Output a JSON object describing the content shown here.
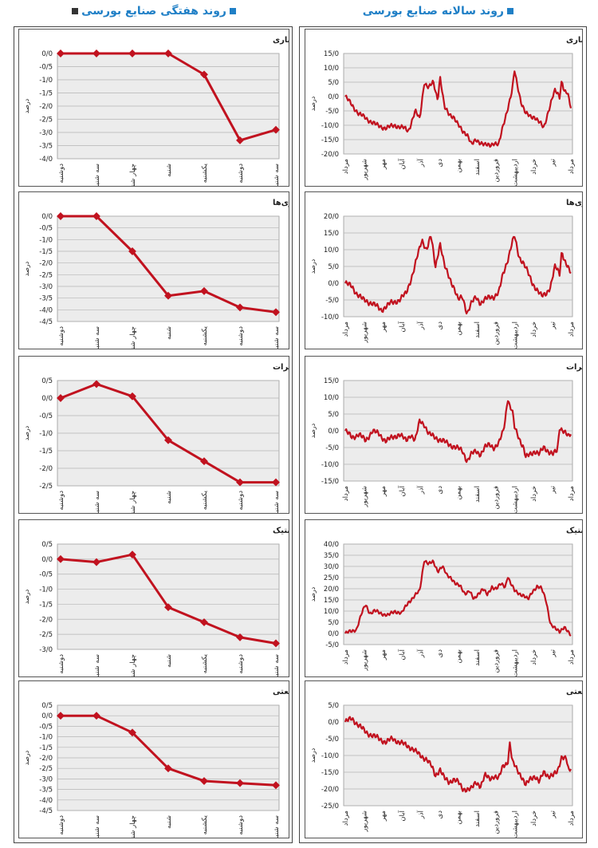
{
  "headers": {
    "right": "روند سالانه صنایع بورسی",
    "left": "روند هفتگی صنایع بورسی",
    "square_color": "#1f7fc6",
    "square_color_left": "#333333"
  },
  "colors": {
    "line": "#c1121f",
    "plot_bg": "#ececec",
    "grid": "#b5b5b5"
  },
  "chart_data": [
    {
      "id": "w1",
      "column": "weekly",
      "type": "line",
      "title": "بانک‌ها و موسسات اعتباری",
      "ylabel": "درصد",
      "categories": [
        "دوشنبه",
        "سه شنبه",
        "چهار شنبه",
        "شنبه",
        "یکشنبه",
        "دوشنبه",
        "سه شنبه"
      ],
      "values": [
        0,
        0,
        0,
        0,
        -0.8,
        -3.3,
        -2.9
      ],
      "yticks": [
        "0/0",
        "-0/5",
        "-1/0",
        "-1/5",
        "-2/0",
        "-2/5",
        "-3/0",
        "-3/5",
        "-4/0"
      ],
      "ylim": [
        -4.0,
        0.0
      ]
    },
    {
      "id": "w2",
      "column": "weekly",
      "type": "line",
      "title": "سرمایه‌گذاری‌ها",
      "ylabel": "درصد",
      "categories": [
        "دوشنبه",
        "سه شنبه",
        "چهار شنبه",
        "شنبه",
        "یکشنبه",
        "دوشنبه",
        "سه شنبه"
      ],
      "values": [
        0,
        0,
        -1.5,
        -3.4,
        -3.2,
        -3.9,
        -4.1
      ],
      "yticks": [
        "0/0",
        "-0/5",
        "-1/0",
        "-1/5",
        "-2/0",
        "-2/5",
        "-3/0",
        "-3/5",
        "-4/0",
        "-4/5"
      ],
      "ylim": [
        -4.5,
        0.0
      ]
    },
    {
      "id": "w3",
      "column": "weekly",
      "type": "line",
      "title": "مخابرات",
      "ylabel": "درصد",
      "categories": [
        "دوشنبه",
        "سه شنبه",
        "چهار شنبه",
        "شنبه",
        "یکشنبه",
        "دوشنبه",
        "سه شنبه"
      ],
      "values": [
        0,
        0.4,
        0.05,
        -1.2,
        -1.8,
        -2.4,
        -2.4
      ],
      "yticks": [
        "0/5",
        "0/0",
        "-0/5",
        "-1/0",
        "-1/5",
        "-2/0",
        "-2/5"
      ],
      "ylim": [
        -2.5,
        0.5
      ]
    },
    {
      "id": "w4",
      "column": "weekly",
      "type": "line",
      "title": "لاستیک و پلاستیک",
      "ylabel": "درصد",
      "categories": [
        "دوشنبه",
        "سه شنبه",
        "چهار شنبه",
        "شنبه",
        "یکشنبه",
        "دوشنبه",
        "سه شنبه"
      ],
      "values": [
        0,
        -0.1,
        0.15,
        -1.6,
        -2.1,
        -2.6,
        -2.8
      ],
      "yticks": [
        "0/5",
        "0/0",
        "-0/5",
        "-1/0",
        "-1/5",
        "-2/0",
        "-2/5",
        "-3/0"
      ],
      "ylim": [
        -3.0,
        0.5
      ]
    },
    {
      "id": "w5",
      "column": "weekly",
      "type": "line",
      "title": "شرکت‌های چندرشته‌ای صنعتی",
      "ylabel": "درصد",
      "categories": [
        "دوشنبه",
        "سه شنبه",
        "چهار شنبه",
        "شنبه",
        "یکشنبه",
        "دوشنبه",
        "سه شنبه"
      ],
      "values": [
        0,
        0,
        -0.8,
        -2.5,
        -3.1,
        -3.2,
        -3.3
      ],
      "yticks": [
        "0/5",
        "0/0",
        "-0/5",
        "-1/0",
        "-1/5",
        "-2/0",
        "-2/5",
        "-3/0",
        "-3/5",
        "-4/0",
        "-4/5"
      ],
      "ylim": [
        -4.5,
        0.5
      ]
    },
    {
      "id": "a1",
      "column": "annual",
      "type": "line",
      "title": "بانک‌ها و موسسات اعتباری",
      "ylabel": "درصد",
      "month_labels": [
        "مرداد",
        "شهریور",
        "مهر",
        "آبان",
        "آذر",
        "دی",
        "بهمن",
        "اسفند",
        "فروردین",
        "اردیبهشت",
        "خرداد",
        "تیر",
        "مرداد"
      ],
      "yticks": [
        "15/0",
        "10/0",
        "5/0",
        "0/0",
        "-5/0",
        "-10/0",
        "-15/0",
        "-20/0"
      ],
      "ylim": [
        -20,
        15
      ],
      "series_keypoints": [
        [
          0,
          0
        ],
        [
          0.03,
          -3
        ],
        [
          0.06,
          -6
        ],
        [
          0.1,
          -8
        ],
        [
          0.14,
          -10
        ],
        [
          0.18,
          -11
        ],
        [
          0.22,
          -10
        ],
        [
          0.26,
          -11
        ],
        [
          0.28,
          -12
        ],
        [
          0.31,
          -5
        ],
        [
          0.33,
          -8
        ],
        [
          0.35,
          5
        ],
        [
          0.37,
          3
        ],
        [
          0.39,
          5
        ],
        [
          0.41,
          -1
        ],
        [
          0.42,
          7
        ],
        [
          0.44,
          -4
        ],
        [
          0.46,
          -6
        ],
        [
          0.48,
          -7
        ],
        [
          0.5,
          -10
        ],
        [
          0.52,
          -12
        ],
        [
          0.54,
          -13
        ],
        [
          0.56,
          -17
        ],
        [
          0.58,
          -15
        ],
        [
          0.6,
          -16
        ],
        [
          0.62,
          -17
        ],
        [
          0.64,
          -17
        ],
        [
          0.66,
          -16
        ],
        [
          0.68,
          -17
        ],
        [
          0.7,
          -10
        ],
        [
          0.72,
          -4
        ],
        [
          0.74,
          2
        ],
        [
          0.75,
          9
        ],
        [
          0.76,
          5
        ],
        [
          0.78,
          -2
        ],
        [
          0.8,
          -6
        ],
        [
          0.82,
          -7
        ],
        [
          0.84,
          -7
        ],
        [
          0.86,
          -9
        ],
        [
          0.88,
          -11
        ],
        [
          0.9,
          -5
        ],
        [
          0.92,
          0
        ],
        [
          0.93,
          2
        ],
        [
          0.95,
          0
        ],
        [
          0.96,
          6
        ],
        [
          0.97,
          2
        ],
        [
          0.985,
          1
        ],
        [
          1.0,
          -4
        ]
      ]
    },
    {
      "id": "a2",
      "column": "annual",
      "type": "line",
      "title": "سرمایه‌گذاری‌ها",
      "ylabel": "درصد",
      "month_labels": [
        "مرداد",
        "شهریور",
        "مهر",
        "آبان",
        "آذر",
        "دی",
        "بهمن",
        "اسفند",
        "فروردین",
        "اردیبهشت",
        "خرداد",
        "تیر",
        "مرداد"
      ],
      "yticks": [
        "20/0",
        "15/0",
        "10/0",
        "5/0",
        "0/0",
        "-5/0",
        "-10/0"
      ],
      "ylim": [
        -10,
        20
      ],
      "series_keypoints": [
        [
          0,
          0
        ],
        [
          0.03,
          -1
        ],
        [
          0.05,
          -3
        ],
        [
          0.08,
          -5
        ],
        [
          0.12,
          -6
        ],
        [
          0.16,
          -8
        ],
        [
          0.2,
          -6
        ],
        [
          0.24,
          -5
        ],
        [
          0.27,
          -3
        ],
        [
          0.3,
          3
        ],
        [
          0.32,
          8
        ],
        [
          0.34,
          13
        ],
        [
          0.36,
          10
        ],
        [
          0.38,
          14
        ],
        [
          0.4,
          5
        ],
        [
          0.42,
          12
        ],
        [
          0.44,
          5
        ],
        [
          0.46,
          2
        ],
        [
          0.48,
          -1
        ],
        [
          0.5,
          -5
        ],
        [
          0.52,
          -4
        ],
        [
          0.54,
          -9
        ],
        [
          0.56,
          -6
        ],
        [
          0.58,
          -4
        ],
        [
          0.6,
          -6
        ],
        [
          0.62,
          -5
        ],
        [
          0.64,
          -4
        ],
        [
          0.66,
          -4
        ],
        [
          0.68,
          -3
        ],
        [
          0.7,
          3
        ],
        [
          0.72,
          7
        ],
        [
          0.74,
          12
        ],
        [
          0.75,
          14
        ],
        [
          0.77,
          8
        ],
        [
          0.79,
          6
        ],
        [
          0.81,
          3
        ],
        [
          0.83,
          0
        ],
        [
          0.85,
          -2
        ],
        [
          0.87,
          -4
        ],
        [
          0.89,
          -3
        ],
        [
          0.91,
          -1
        ],
        [
          0.93,
          5
        ],
        [
          0.95,
          3
        ],
        [
          0.96,
          10
        ],
        [
          0.97,
          7
        ],
        [
          0.99,
          4
        ],
        [
          1.0,
          3
        ]
      ]
    },
    {
      "id": "a3",
      "column": "annual",
      "type": "line",
      "title": "مخابرات",
      "ylabel": "درصد",
      "month_labels": [
        "مرداد",
        "شهریور",
        "مهر",
        "آبان",
        "آذر",
        "دی",
        "بهمن",
        "اسفند",
        "فروردین",
        "اردیبهشت",
        "خرداد",
        "تیر",
        "مرداد"
      ],
      "yticks": [
        "15/0",
        "10/0",
        "5/0",
        "0/0",
        "-5/0",
        "-10/0",
        "-15/0"
      ],
      "ylim": [
        -15,
        15
      ],
      "series_keypoints": [
        [
          0,
          0
        ],
        [
          0.03,
          -2
        ],
        [
          0.06,
          -1
        ],
        [
          0.09,
          -3
        ],
        [
          0.12,
          0
        ],
        [
          0.15,
          -1
        ],
        [
          0.18,
          -3
        ],
        [
          0.21,
          -2
        ],
        [
          0.24,
          -1
        ],
        [
          0.27,
          -3
        ],
        [
          0.29,
          -1
        ],
        [
          0.31,
          -3
        ],
        [
          0.33,
          3
        ],
        [
          0.35,
          2
        ],
        [
          0.37,
          -1
        ],
        [
          0.4,
          -2
        ],
        [
          0.43,
          -3
        ],
        [
          0.46,
          -4
        ],
        [
          0.49,
          -5
        ],
        [
          0.52,
          -6
        ],
        [
          0.54,
          -9
        ],
        [
          0.56,
          -7
        ],
        [
          0.58,
          -6
        ],
        [
          0.6,
          -7
        ],
        [
          0.62,
          -5
        ],
        [
          0.64,
          -4
        ],
        [
          0.66,
          -5
        ],
        [
          0.68,
          -4
        ],
        [
          0.7,
          0
        ],
        [
          0.71,
          4
        ],
        [
          0.72,
          10
        ],
        [
          0.73,
          7
        ],
        [
          0.74,
          6
        ],
        [
          0.75,
          1
        ],
        [
          0.77,
          -2
        ],
        [
          0.79,
          -5
        ],
        [
          0.8,
          -8
        ],
        [
          0.82,
          -7
        ],
        [
          0.84,
          -6
        ],
        [
          0.86,
          -7
        ],
        [
          0.88,
          -5
        ],
        [
          0.9,
          -6
        ],
        [
          0.92,
          -7
        ],
        [
          0.94,
          -6
        ],
        [
          0.95,
          1
        ],
        [
          0.97,
          0
        ],
        [
          0.99,
          -2
        ],
        [
          1.0,
          -1
        ]
      ]
    },
    {
      "id": "a4",
      "column": "annual",
      "type": "line",
      "title": "لاستیک و پلاستیک",
      "ylabel": "درصد",
      "month_labels": [
        "مرداد",
        "شهریور",
        "مهر",
        "آبان",
        "آذر",
        "دی",
        "بهمن",
        "اسفند",
        "فروردین",
        "اردیبهشت",
        "خرداد",
        "تیر",
        "مرداد"
      ],
      "yticks": [
        "40/0",
        "35/0",
        "30/0",
        "25/0",
        "20/0",
        "15/0",
        "10/0",
        "5/0",
        "0/0",
        "-5/0"
      ],
      "ylim": [
        -5,
        40
      ],
      "series_keypoints": [
        [
          0,
          0
        ],
        [
          0.03,
          1
        ],
        [
          0.05,
          2
        ],
        [
          0.07,
          8
        ],
        [
          0.09,
          13
        ],
        [
          0.11,
          9
        ],
        [
          0.13,
          10
        ],
        [
          0.16,
          9
        ],
        [
          0.19,
          8
        ],
        [
          0.22,
          10
        ],
        [
          0.25,
          9
        ],
        [
          0.28,
          14
        ],
        [
          0.31,
          17
        ],
        [
          0.33,
          19
        ],
        [
          0.35,
          33
        ],
        [
          0.37,
          31
        ],
        [
          0.39,
          32
        ],
        [
          0.41,
          28
        ],
        [
          0.43,
          30
        ],
        [
          0.45,
          26
        ],
        [
          0.47,
          25
        ],
        [
          0.49,
          22
        ],
        [
          0.51,
          21
        ],
        [
          0.53,
          18
        ],
        [
          0.55,
          19
        ],
        [
          0.57,
          15
        ],
        [
          0.59,
          18
        ],
        [
          0.61,
          20
        ],
        [
          0.63,
          17
        ],
        [
          0.65,
          21
        ],
        [
          0.67,
          20
        ],
        [
          0.69,
          22
        ],
        [
          0.71,
          21
        ],
        [
          0.72,
          26
        ],
        [
          0.73,
          23
        ],
        [
          0.75,
          19
        ],
        [
          0.77,
          18
        ],
        [
          0.79,
          17
        ],
        [
          0.81,
          15
        ],
        [
          0.83,
          19
        ],
        [
          0.85,
          21
        ],
        [
          0.87,
          20
        ],
        [
          0.89,
          15
        ],
        [
          0.91,
          4
        ],
        [
          0.93,
          2
        ],
        [
          0.95,
          1
        ],
        [
          0.97,
          3
        ],
        [
          0.99,
          0
        ],
        [
          1.0,
          -1
        ]
      ]
    },
    {
      "id": "a5",
      "column": "annual",
      "type": "line",
      "title": "شرکت‌های چندرشته‌ای صنعتی",
      "ylabel": "درصد",
      "month_labels": [
        "مرداد",
        "شهریور",
        "مهر",
        "آبان",
        "آذر",
        "دی",
        "بهمن",
        "اسفند",
        "فروردین",
        "اردیبهشت",
        "خرداد",
        "تیر",
        "مرداد"
      ],
      "yticks": [
        "5/0",
        "0/0",
        "-5/0",
        "-10/0",
        "-15/0",
        "-20/0",
        "-25/0"
      ],
      "ylim": [
        -25,
        5
      ],
      "series_keypoints": [
        [
          0,
          0
        ],
        [
          0.03,
          1
        ],
        [
          0.06,
          -1
        ],
        [
          0.09,
          -3
        ],
        [
          0.12,
          -4
        ],
        [
          0.15,
          -5
        ],
        [
          0.18,
          -6
        ],
        [
          0.21,
          -5
        ],
        [
          0.24,
          -6
        ],
        [
          0.27,
          -7
        ],
        [
          0.3,
          -8
        ],
        [
          0.33,
          -10
        ],
        [
          0.36,
          -11
        ],
        [
          0.38,
          -13
        ],
        [
          0.4,
          -16
        ],
        [
          0.42,
          -14
        ],
        [
          0.44,
          -17
        ],
        [
          0.46,
          -18
        ],
        [
          0.48,
          -17
        ],
        [
          0.5,
          -18
        ],
        [
          0.52,
          -20
        ],
        [
          0.54,
          -20
        ],
        [
          0.56,
          -20
        ],
        [
          0.58,
          -18
        ],
        [
          0.6,
          -19
        ],
        [
          0.62,
          -16
        ],
        [
          0.64,
          -17
        ],
        [
          0.66,
          -16
        ],
        [
          0.68,
          -17
        ],
        [
          0.7,
          -13
        ],
        [
          0.72,
          -12
        ],
        [
          0.73,
          -6
        ],
        [
          0.74,
          -12
        ],
        [
          0.76,
          -14
        ],
        [
          0.78,
          -16
        ],
        [
          0.8,
          -19
        ],
        [
          0.82,
          -17
        ],
        [
          0.84,
          -16
        ],
        [
          0.86,
          -18
        ],
        [
          0.88,
          -15
        ],
        [
          0.9,
          -16
        ],
        [
          0.92,
          -16
        ],
        [
          0.94,
          -15
        ],
        [
          0.96,
          -10
        ],
        [
          0.98,
          -11
        ],
        [
          0.99,
          -15
        ],
        [
          1.0,
          -14
        ]
      ]
    }
  ]
}
